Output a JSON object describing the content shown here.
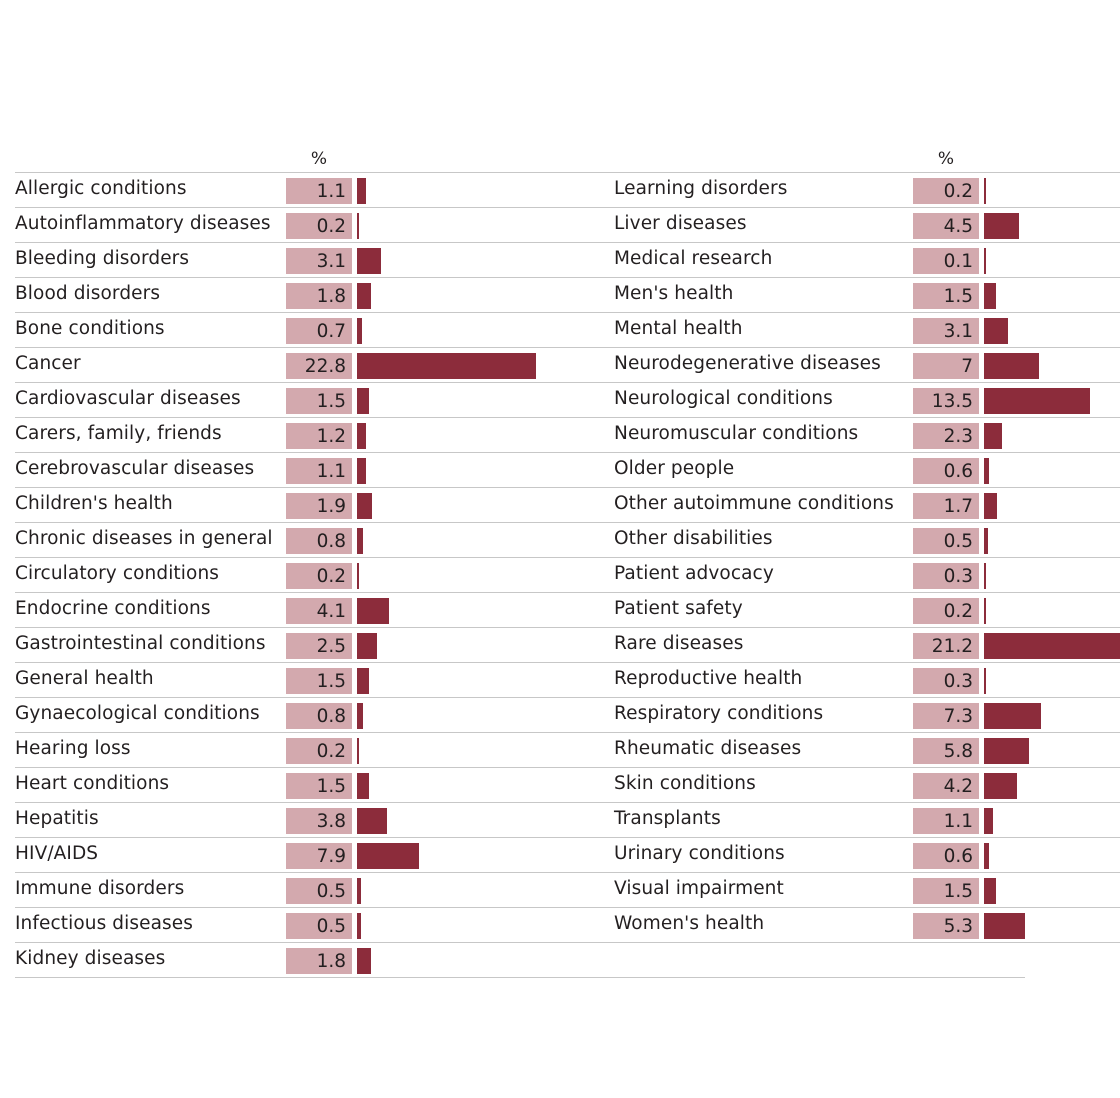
{
  "chart_data": {
    "type": "bar",
    "unit_label": "%",
    "columns": [
      {
        "categories": [
          "Allergic conditions",
          "Autoinflammatory diseases",
          "Bleeding disorders",
          "Blood disorders",
          "Bone conditions",
          "Cancer",
          "Cardiovascular diseases",
          "Carers, family, friends",
          "Cerebrovascular diseases",
          "Children's health",
          "Chronic diseases in general",
          "Circulatory conditions",
          "Endocrine conditions",
          "Gastrointestinal conditions",
          "General health",
          "Gynaecological conditions",
          "Hearing loss",
          "Heart conditions",
          "Hepatitis",
          "HIV/AIDS",
          "Immune disorders",
          "Infectious diseases",
          "Kidney diseases"
        ],
        "values": [
          1.1,
          0.2,
          3.1,
          1.8,
          0.7,
          22.8,
          1.5,
          1.2,
          1.1,
          1.9,
          0.8,
          0.2,
          4.1,
          2.5,
          1.5,
          0.8,
          0.2,
          1.5,
          3.8,
          7.9,
          0.5,
          0.5,
          1.8
        ]
      },
      {
        "categories": [
          "Learning disorders",
          "Liver diseases",
          "Medical research",
          "Men's health",
          "Mental health",
          "Neurodegenerative diseases",
          "Neurological conditions",
          "Neuromuscular conditions",
          "Older people",
          "Other autoimmune conditions",
          "Other disabilities",
          "Patient advocacy",
          "Patient safety",
          "Rare diseases",
          "Reproductive health",
          "Respiratory conditions",
          "Rheumatic diseases",
          "Skin conditions",
          "Transplants",
          "Urinary conditions",
          "Visual impairment",
          "Women's health"
        ],
        "values": [
          0.2,
          4.5,
          0.1,
          1.5,
          3.1,
          7,
          13.5,
          2.3,
          0.6,
          1.7,
          0.5,
          0.3,
          0.2,
          21.2,
          0.3,
          7.3,
          5.8,
          4.2,
          1.1,
          0.6,
          1.5,
          5.3
        ]
      }
    ],
    "xlim": [
      0,
      22.8
    ],
    "colors": {
      "bar": "#8c2c3b",
      "value_box": "#d3a9ae",
      "rule": "#c7c7c7"
    },
    "grid": false,
    "legend": "none"
  }
}
